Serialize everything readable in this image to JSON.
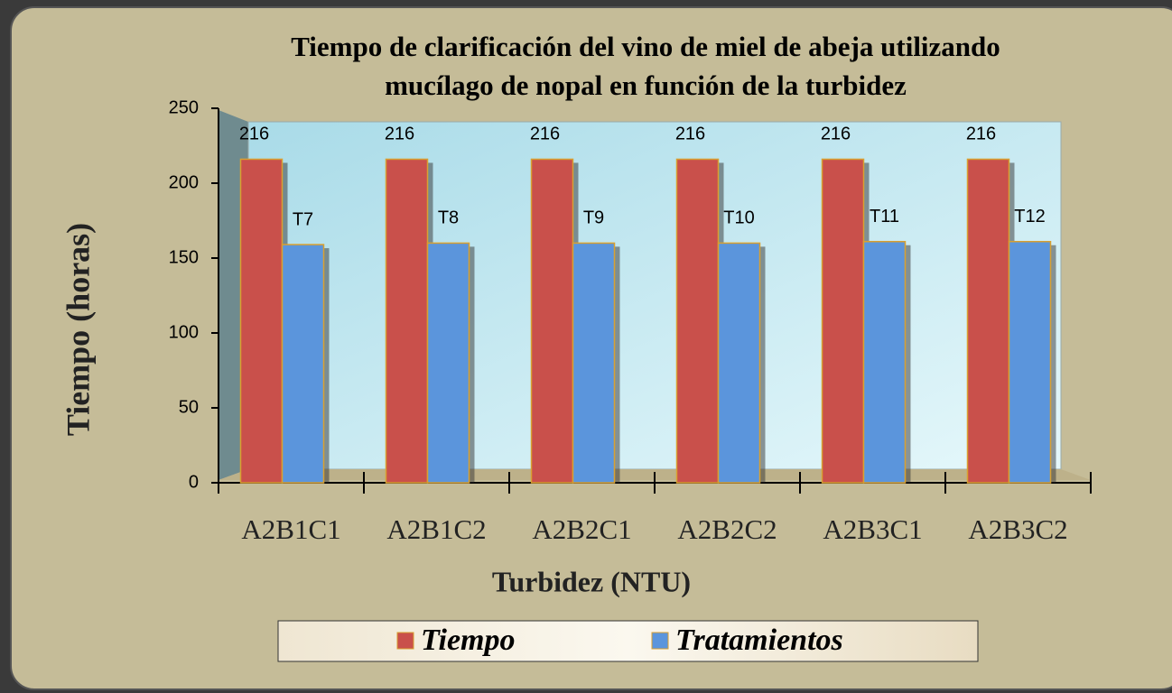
{
  "chart_data": {
    "type": "bar",
    "title": [
      "Tiempo de clarificación del vino de miel de abeja utilizando",
      "mucílago de nopal en función de la turbidez"
    ],
    "xlabel": "Turbidez (NTU)",
    "ylabel": "Tiempo (horas)",
    "categories": [
      "A2B1C1",
      "A2B1C2",
      "A2B2C1",
      "A2B2C2",
      "A2B3C1",
      "A2B3C2"
    ],
    "series": [
      {
        "name": "Tiempo",
        "color": "#c9504b",
        "values": [
          216,
          216,
          216,
          216,
          216,
          216
        ]
      },
      {
        "name": "Tratamientos",
        "color": "#5b95dc",
        "values": [
          159,
          160,
          160,
          160,
          161,
          161
        ],
        "annotations": [
          "T7",
          "T8",
          "T9",
          "T10",
          "T11",
          "T12"
        ]
      }
    ],
    "ylim": [
      0,
      250
    ],
    "yticks": [
      0,
      50,
      100,
      150,
      200,
      250
    ],
    "legend": "bottom"
  }
}
